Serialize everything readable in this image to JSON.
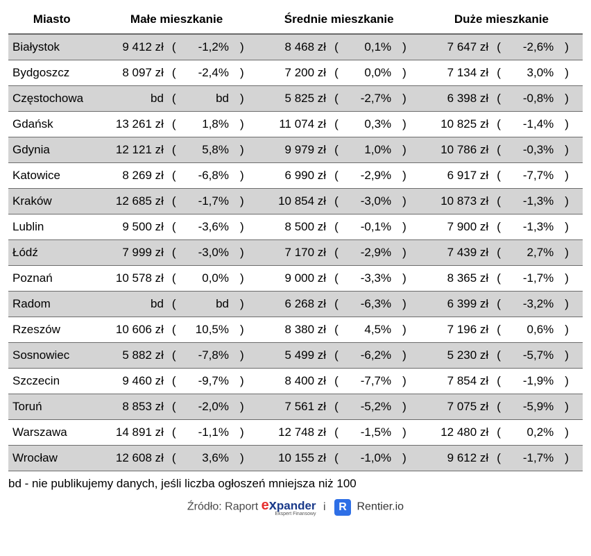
{
  "table": {
    "headers": {
      "city": "Miasto",
      "small": "Małe mieszkanie",
      "medium": "Średnie mieszkanie",
      "large": "Duże mieszkanie"
    },
    "rows": [
      {
        "city": "Białystok",
        "small_price": "9 412 zł",
        "small_pct": "-1,2%",
        "medium_price": "8 468 zł",
        "medium_pct": "0,1%",
        "large_price": "7 647 zł",
        "large_pct": "-2,6%"
      },
      {
        "city": "Bydgoszcz",
        "small_price": "8 097 zł",
        "small_pct": "-2,4%",
        "medium_price": "7 200 zł",
        "medium_pct": "0,0%",
        "large_price": "7 134 zł",
        "large_pct": "3,0%"
      },
      {
        "city": "Częstochowa",
        "small_price": "bd",
        "small_pct": "bd",
        "medium_price": "5 825 zł",
        "medium_pct": "-2,7%",
        "large_price": "6 398 zł",
        "large_pct": "-0,8%"
      },
      {
        "city": "Gdańsk",
        "small_price": "13 261 zł",
        "small_pct": "1,8%",
        "medium_price": "11 074 zł",
        "medium_pct": "0,3%",
        "large_price": "10 825 zł",
        "large_pct": "-1,4%"
      },
      {
        "city": "Gdynia",
        "small_price": "12 121 zł",
        "small_pct": "5,8%",
        "medium_price": "9 979 zł",
        "medium_pct": "1,0%",
        "large_price": "10 786 zł",
        "large_pct": "-0,3%"
      },
      {
        "city": "Katowice",
        "small_price": "8 269 zł",
        "small_pct": "-6,8%",
        "medium_price": "6 990 zł",
        "medium_pct": "-2,9%",
        "large_price": "6 917 zł",
        "large_pct": "-7,7%"
      },
      {
        "city": "Kraków",
        "small_price": "12 685 zł",
        "small_pct": "-1,7%",
        "medium_price": "10 854 zł",
        "medium_pct": "-3,0%",
        "large_price": "10 873 zł",
        "large_pct": "-1,3%"
      },
      {
        "city": "Lublin",
        "small_price": "9 500 zł",
        "small_pct": "-3,6%",
        "medium_price": "8 500 zł",
        "medium_pct": "-0,1%",
        "large_price": "7 900 zł",
        "large_pct": "-1,3%"
      },
      {
        "city": "Łódź",
        "small_price": "7 999 zł",
        "small_pct": "-3,0%",
        "medium_price": "7 170 zł",
        "medium_pct": "-2,9%",
        "large_price": "7 439 zł",
        "large_pct": "2,7%"
      },
      {
        "city": "Poznań",
        "small_price": "10 578 zł",
        "small_pct": "0,0%",
        "medium_price": "9 000 zł",
        "medium_pct": "-3,3%",
        "large_price": "8 365 zł",
        "large_pct": "-1,7%"
      },
      {
        "city": "Radom",
        "small_price": "bd",
        "small_pct": "bd",
        "medium_price": "6 268 zł",
        "medium_pct": "-6,3%",
        "large_price": "6 399 zł",
        "large_pct": "-3,2%"
      },
      {
        "city": "Rzeszów",
        "small_price": "10 606 zł",
        "small_pct": "10,5%",
        "medium_price": "8 380 zł",
        "medium_pct": "4,5%",
        "large_price": "7 196 zł",
        "large_pct": "0,6%"
      },
      {
        "city": "Sosnowiec",
        "small_price": "5 882 zł",
        "small_pct": "-7,8%",
        "medium_price": "5 499 zł",
        "medium_pct": "-6,2%",
        "large_price": "5 230 zł",
        "large_pct": "-5,7%"
      },
      {
        "city": "Szczecin",
        "small_price": "9 460 zł",
        "small_pct": "-9,7%",
        "medium_price": "8 400 zł",
        "medium_pct": "-7,7%",
        "large_price": "7 854 zł",
        "large_pct": "-1,9%"
      },
      {
        "city": "Toruń",
        "small_price": "8 853 zł",
        "small_pct": "-2,0%",
        "medium_price": "7 561 zł",
        "medium_pct": "-5,2%",
        "large_price": "7 075 zł",
        "large_pct": "-5,9%"
      },
      {
        "city": "Warszawa",
        "small_price": "14 891 zł",
        "small_pct": "-1,1%",
        "medium_price": "12 748 zł",
        "medium_pct": "-1,5%",
        "large_price": "12 480 zł",
        "large_pct": "0,2%"
      },
      {
        "city": "Wrocław",
        "small_price": "12 608 zł",
        "small_pct": "3,6%",
        "medium_price": "10 155 zł",
        "medium_pct": "-1,0%",
        "large_price": "9 612 zł",
        "large_pct": "-1,7%"
      }
    ],
    "paren_l": "(",
    "paren_r": ")"
  },
  "footnote": "bd - nie publikujemy danych, jeśli liczba ogłoszeń mniejsza niż 100",
  "source": {
    "label": "Źródło: Raport",
    "expander_e": "e",
    "expander_x": "x",
    "expander_rest": "pander",
    "expander_sub": "Ekspert Finansowy",
    "and": "i",
    "rentier_badge": "R",
    "rentier_text": "Rentier.io"
  },
  "styling": {
    "row_odd_bg": "#d4d4d4",
    "row_even_bg": "#ffffff",
    "border_color": "#6b6b6b",
    "font_size_table": 17,
    "expander_red": "#e62e2e",
    "expander_blue": "#1a3a8a",
    "rentier_badge_bg": "#2e6fe6"
  }
}
